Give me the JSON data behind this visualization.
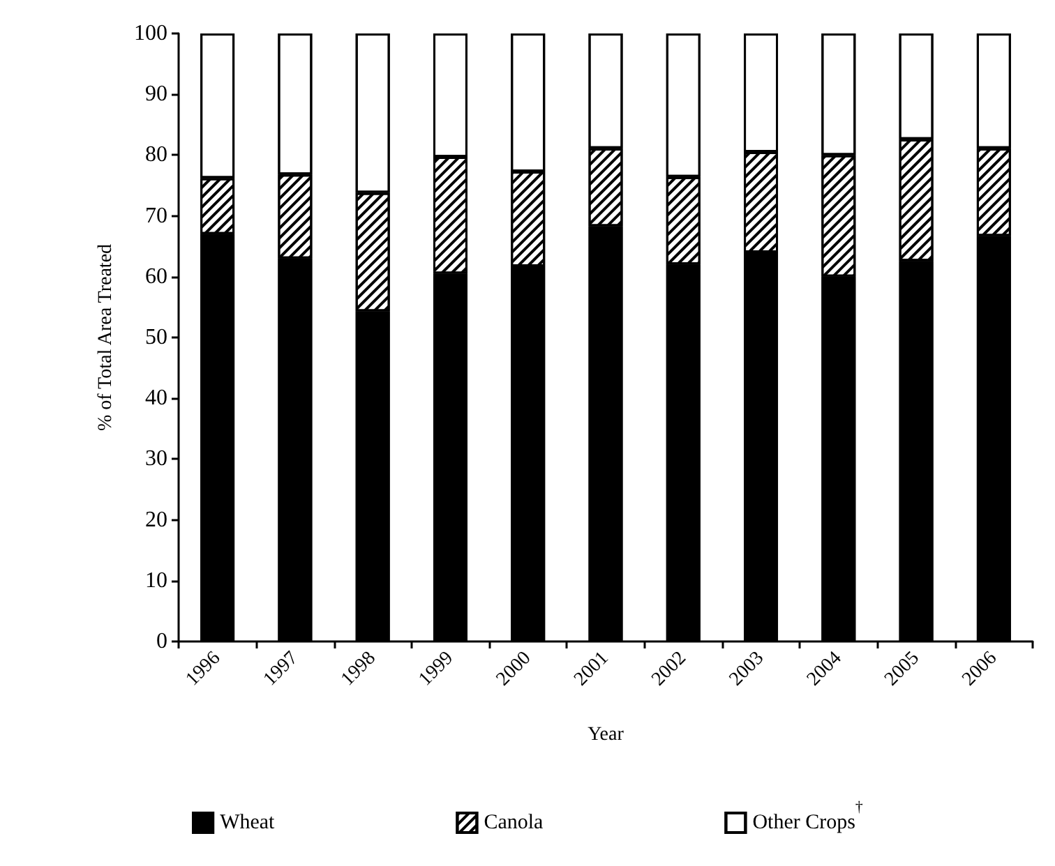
{
  "chart_data": {
    "type": "bar",
    "stacked": true,
    "xlabel": "Year",
    "ylabel": "% of Total Area Treated",
    "categories": [
      "1996",
      "1997",
      "1998",
      "1999",
      "2000",
      "2001",
      "2002",
      "2003",
      "2004",
      "2005",
      "2006"
    ],
    "series": [
      {
        "name": "Wheat",
        "color": "#000000",
        "values": [
          67,
          63,
          54.3,
          60.5,
          61.7,
          68.3,
          62,
          64,
          60,
          62.6,
          66.7
        ]
      },
      {
        "name": "Canola",
        "color": "#ffffff",
        "values": [
          9.2,
          13.8,
          19.5,
          19.2,
          15.6,
          12.8,
          14.4,
          16.5,
          20,
          20,
          14.4
        ]
      },
      {
        "name": "Other Crops$^{†}$",
        "color": "#ffffff",
        "values": [
          23.8,
          23.2,
          26.2,
          20.3,
          22.7,
          18.9,
          23.6,
          19.5,
          20,
          17.4,
          18.9
        ]
      }
    ],
    "ylim": [
      0,
      100
    ],
    "yticks": [
      0,
      10,
      20,
      30,
      40,
      50,
      60,
      70,
      80,
      90,
      100
    ],
    "grid": false,
    "legend": "bottom"
  }
}
